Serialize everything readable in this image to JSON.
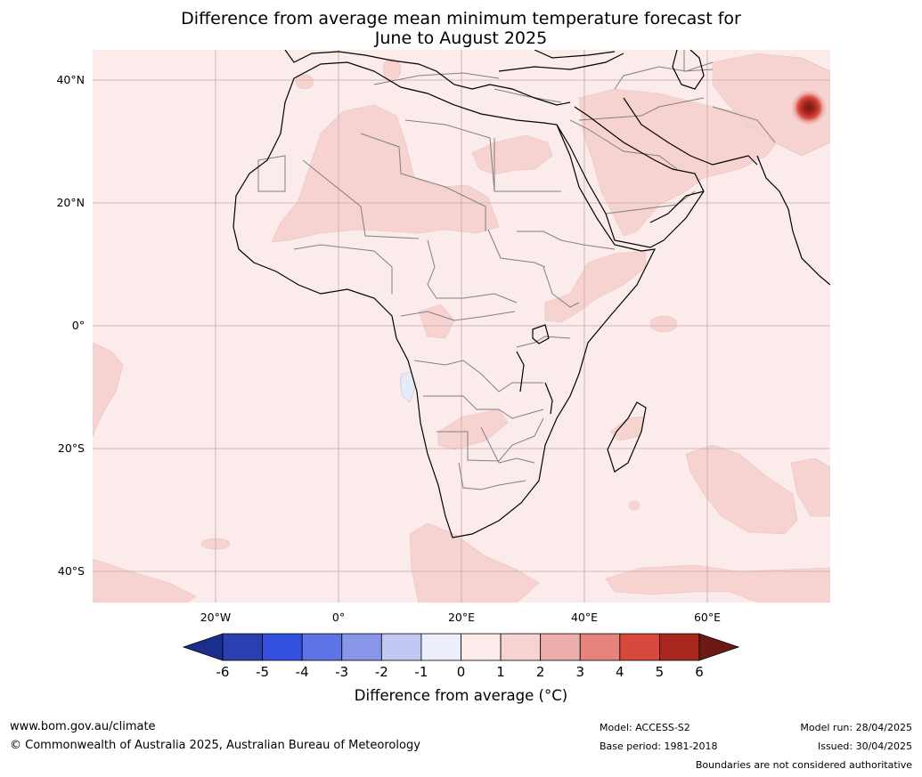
{
  "title_line1": "Difference from average mean minimum temperature forecast for",
  "title_line2": "June to August 2025",
  "lat_labels": [
    "40°N",
    "20°N",
    "0°",
    "20°S",
    "40°S"
  ],
  "lon_labels": [
    "20°W",
    "0°",
    "20°E",
    "40°E",
    "60°E"
  ],
  "colorbar": {
    "ticks": [
      "-6",
      "-5",
      "-4",
      "-3",
      "-2",
      "-1",
      "0",
      "1",
      "2",
      "3",
      "4",
      "5",
      "6"
    ],
    "colors": [
      "#1c2e8c",
      "#2a3fb0",
      "#3350e0",
      "#5c74e6",
      "#8796e8",
      "#c2c8f2",
      "#eceefb",
      "#fbeceb",
      "#f6d3d1",
      "#ecaeaa",
      "#e6847c",
      "#d8493d",
      "#a9271f",
      "#6e1a14"
    ],
    "label": "Difference from average ($^\\circ$C)",
    "label_display": "Difference from average (°C)"
  },
  "footer": {
    "url": "www.bom.gov.au/climate",
    "copyright": "© Commonwealth of Australia 2025, Australian Bureau of Meteorology",
    "model": "Model: ACCESS-S2",
    "base_period": "Base period: 1981-2018",
    "model_run": "Model run: 28/04/2025",
    "issued": "Issued: 30/04/2025",
    "boundaries": "Boundaries are not considered authoritative"
  },
  "colors": {
    "background_anomaly": "#fbeceb",
    "light_warm": "#f6d3d1",
    "hotspot": "#d8493d",
    "cool_patch": "#e6ebf8",
    "coast": "#000000",
    "borders": "#808080",
    "grid": "#c9a8a6"
  }
}
